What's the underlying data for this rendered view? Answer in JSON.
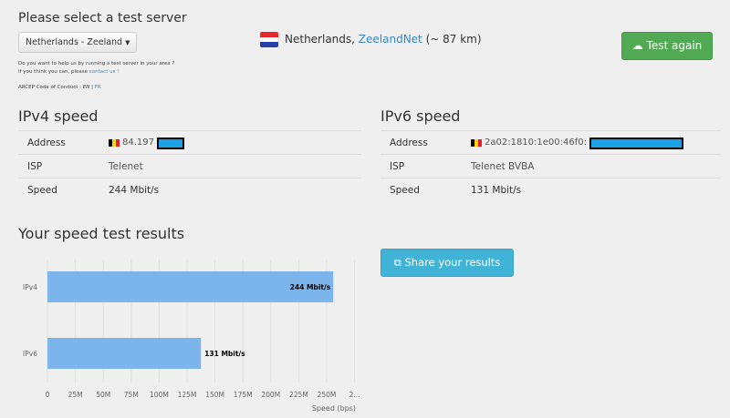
{
  "server": {
    "title": "Please select a test server",
    "selected": "Netherlands - Zeeland",
    "help_line1": "Do you want to help us by running a test server in your area ?",
    "help_line2_prefix": "If you think you can, please",
    "contact_link": "contact us !",
    "conduct_label": "ARCEP Code of Conduct :",
    "conduct_en": "EN",
    "conduct_sep": "|",
    "conduct_fr": "FR",
    "country": "Netherlands,",
    "provider": "ZeelandNet",
    "distance": "(~ 87 km)",
    "test_again": "Test again"
  },
  "ipv4": {
    "title": "IPv4 speed",
    "rows": [
      {
        "key": "Address",
        "value": "84.197"
      },
      {
        "key": "ISP",
        "value": "Telenet"
      },
      {
        "key": "Speed",
        "value": "244 Mbit/s"
      }
    ]
  },
  "ipv6": {
    "title": "IPv6 speed",
    "rows": [
      {
        "key": "Address",
        "value": "2a02:1810:1e00:46f0:"
      },
      {
        "key": "ISP",
        "value": "Telenet BVBA"
      },
      {
        "key": "Speed",
        "value": "131 Mbit/s"
      }
    ]
  },
  "results": {
    "title": "Your speed test results",
    "share": "Share your results"
  },
  "colors": {
    "bar": "#7cb5ec",
    "green": "#52a954",
    "blue": "#41b3d7",
    "link": "#3a87c8"
  },
  "chart_data": {
    "type": "bar",
    "orientation": "horizontal",
    "categories": [
      "IPv4",
      "IPv6"
    ],
    "values": [
      255.9,
      137.4
    ],
    "value_unit": "M bps",
    "data_labels": [
      "244 Mbit/s",
      "131 Mbit/s"
    ],
    "xlabel": "Speed (bps)",
    "xlim": [
      0,
      275
    ],
    "xticks": [
      "0",
      "25M",
      "50M",
      "75M",
      "100M",
      "125M",
      "150M",
      "175M",
      "200M",
      "225M",
      "250M",
      "2..."
    ],
    "grid": true
  }
}
